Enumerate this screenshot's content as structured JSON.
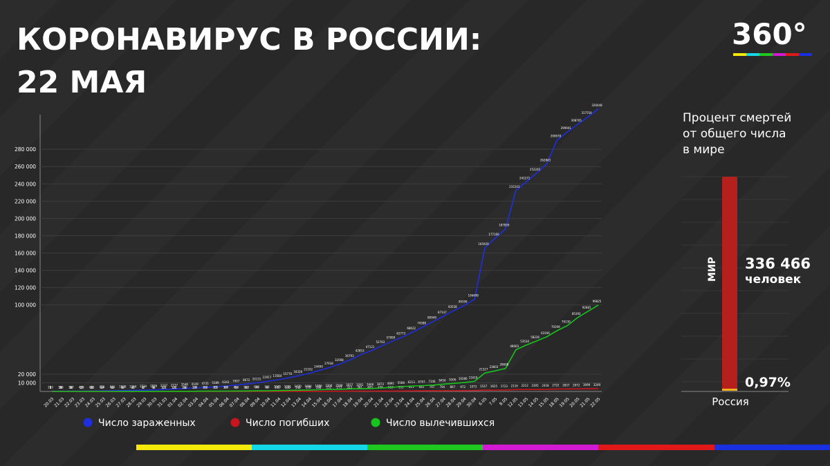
{
  "header": {
    "title_line1": "КОРОНАВИРУС В РОССИИ:",
    "title_line2": "22 МАЯ",
    "logo": "360°"
  },
  "chart_data": [
    {
      "type": "line",
      "categories": [
        "20.03",
        "21.03",
        "22.03",
        "23.03",
        "24.03",
        "25.03",
        "26.03",
        "27.03",
        "28.03",
        "29.03",
        "30.03",
        "31.03",
        "01.04",
        "02.04",
        "03.04",
        "04.04",
        "05.04",
        "06.04",
        "07.04",
        "08.04",
        "09.04",
        "10.04",
        "11.04",
        "12.04",
        "13.04",
        "14.04",
        "15.04",
        "16.04",
        "17.04",
        "18.04",
        "19.04",
        "20.04",
        "21.04",
        "22.04",
        "23.04",
        "24.04",
        "25.04",
        "26.04",
        "27.04",
        "28.04",
        "29.04",
        "30.04",
        "6.05",
        "7.05",
        "8.05",
        "12.05",
        "13.05",
        "14.05",
        "15.05",
        "18.05",
        "19.05",
        "20.05",
        "21.05",
        "22.05"
      ],
      "series": [
        {
          "name": "Число зараженных",
          "color": "#1f2fe0",
          "values": [
            253,
            306,
            367,
            438,
            495,
            658,
            840,
            1036,
            1264,
            1534,
            1836,
            2337,
            2777,
            3548,
            4149,
            4731,
            5389,
            6343,
            7497,
            8672,
            10131,
            11917,
            13584,
            15770,
            18328,
            21102,
            24490,
            27938,
            32008,
            36793,
            42853,
            47121,
            52763,
            57999,
            62773,
            68622,
            74588,
            80949,
            87147,
            93558,
            99399,
            106498,
            165929,
            177160,
            187859,
            232243,
            242271,
            252245,
            262843,
            290678,
            299941,
            308705,
            317554,
            326448
          ]
        },
        {
          "name": "Число погибших",
          "color": "#c8141c",
          "values": [
            1,
            1,
            1,
            1,
            1,
            2,
            3,
            4,
            4,
            8,
            9,
            17,
            24,
            30,
            34,
            43,
            45,
            47,
            58,
            63,
            76,
            94,
            106,
            130,
            148,
            170,
            198,
            232,
            273,
            313,
            361,
            405,
            456,
            513,
            555,
            615,
            681,
            747,
            794,
            867,
            972,
            1073,
            1537,
            1625,
            1723,
            2116,
            2212,
            2305,
            2418,
            2722,
            2837,
            2972,
            3099,
            3249
          ]
        },
        {
          "name": "Число вылечившихся",
          "color": "#17c41c",
          "values": [
            9,
            16,
            16,
            17,
            22,
            29,
            38,
            49,
            64,
            67,
            98,
            121,
            175,
            190,
            235,
            333,
            355,
            398,
            494,
            580,
            698,
            795,
            1045,
            1291,
            1470,
            1694,
            1986,
            2304,
            2590,
            3057,
            3291,
            3446,
            3873,
            4891,
            5568,
            6213,
            6767,
            7346,
            8456,
            9306,
            10286,
            11619,
            21327,
            23803,
            26608,
            48003,
            53530,
            58226,
            63166,
            70209,
            76130,
            85392,
            92681,
            99825
          ]
        }
      ],
      "ylim": [
        0,
        320000
      ],
      "yticks": [
        {
          "value": 10000,
          "label": "10 000"
        },
        {
          "value": 20000,
          "label": "20 000"
        },
        {
          "value": 100000,
          "label": "100 000"
        },
        {
          "value": 120000,
          "label": "120 000"
        },
        {
          "value": 140000,
          "label": "140 000"
        },
        {
          "value": 160000,
          "label": "160 000"
        },
        {
          "value": 180000,
          "label": "180 000"
        },
        {
          "value": 200000,
          "label": "200 000"
        },
        {
          "value": 220000,
          "label": "220 000"
        },
        {
          "value": 240000,
          "label": "240 000"
        },
        {
          "value": 260000,
          "label": "260 000"
        },
        {
          "value": 280000,
          "label": "280 000"
        }
      ],
      "grid": true,
      "legend": "bottom"
    },
    {
      "type": "share_bar",
      "title": "Процент смертей от общего числа в мире",
      "categories": [
        "МИР",
        "Россия"
      ],
      "values": [
        336466,
        0.97
      ],
      "value_labels": [
        "336 466",
        "0,97%"
      ],
      "unit": "человек",
      "colors": [
        "#b51f1c",
        "#f2b01e"
      ]
    }
  ]
}
